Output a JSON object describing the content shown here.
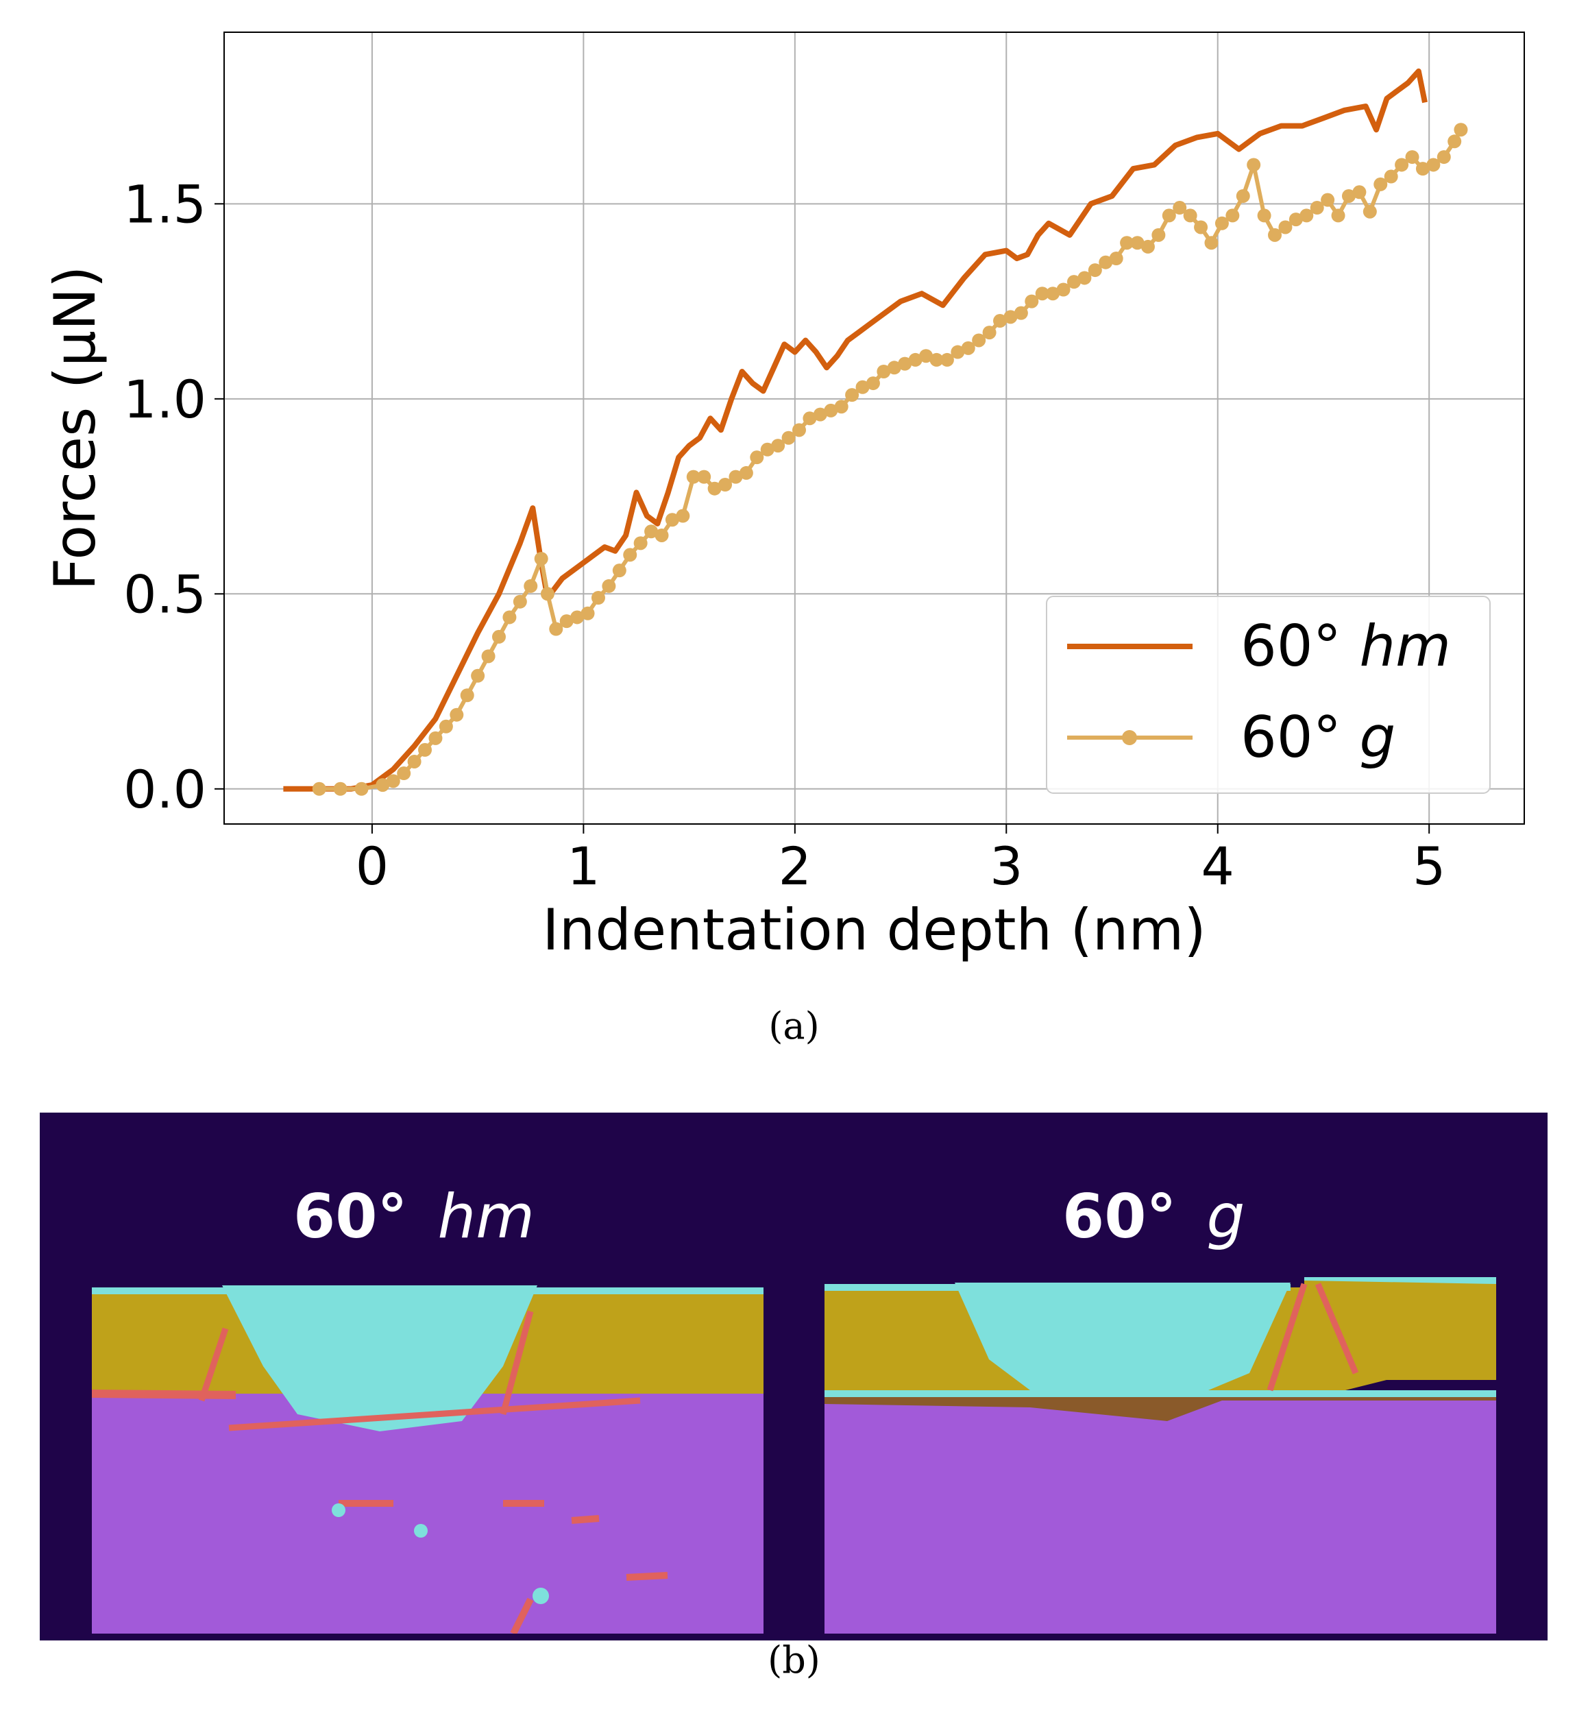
{
  "chart_data": {
    "type": "line",
    "xlabel": "Indentation depth (nm)",
    "ylabel": "Forces (μN)",
    "xlim": [
      -0.7,
      5.45
    ],
    "ylim": [
      -0.09,
      1.94
    ],
    "xticks": [
      0,
      1,
      2,
      3,
      4,
      5
    ],
    "yticks": [
      0.0,
      0.5,
      1.0,
      1.5
    ],
    "xtick_labels": [
      "0",
      "1",
      "2",
      "3",
      "4",
      "5"
    ],
    "ytick_labels": [
      "0.0",
      "0.5",
      "1.0",
      "1.5"
    ],
    "grid": true,
    "legend_position": "bottom-right",
    "series": [
      {
        "name": "60° hm",
        "legend_prefix": "60°",
        "legend_italic": "hm",
        "color": "#d35f0e",
        "marker": false,
        "x": [
          -0.42,
          -0.1,
          0.0,
          0.1,
          0.2,
          0.3,
          0.4,
          0.5,
          0.6,
          0.7,
          0.76,
          0.8,
          0.83,
          0.9,
          1.0,
          1.05,
          1.1,
          1.15,
          1.2,
          1.25,
          1.3,
          1.35,
          1.4,
          1.45,
          1.5,
          1.55,
          1.6,
          1.65,
          1.7,
          1.75,
          1.8,
          1.85,
          1.9,
          1.95,
          2.0,
          2.05,
          2.1,
          2.15,
          2.2,
          2.25,
          2.3,
          2.4,
          2.5,
          2.6,
          2.7,
          2.8,
          2.9,
          3.0,
          3.05,
          3.1,
          3.15,
          3.2,
          3.3,
          3.4,
          3.5,
          3.6,
          3.7,
          3.8,
          3.9,
          4.0,
          4.1,
          4.2,
          4.3,
          4.4,
          4.5,
          4.6,
          4.7,
          4.75,
          4.8,
          4.85,
          4.9,
          4.95,
          4.98
        ],
        "y": [
          0.0,
          0.0,
          0.01,
          0.05,
          0.11,
          0.18,
          0.29,
          0.4,
          0.5,
          0.63,
          0.72,
          0.58,
          0.49,
          0.54,
          0.58,
          0.6,
          0.62,
          0.61,
          0.65,
          0.76,
          0.7,
          0.68,
          0.76,
          0.85,
          0.88,
          0.9,
          0.95,
          0.92,
          1.0,
          1.07,
          1.04,
          1.02,
          1.08,
          1.14,
          1.12,
          1.15,
          1.12,
          1.08,
          1.11,
          1.15,
          1.17,
          1.21,
          1.25,
          1.27,
          1.24,
          1.31,
          1.37,
          1.38,
          1.36,
          1.37,
          1.42,
          1.45,
          1.42,
          1.5,
          1.52,
          1.59,
          1.6,
          1.65,
          1.67,
          1.68,
          1.64,
          1.68,
          1.7,
          1.7,
          1.72,
          1.74,
          1.75,
          1.69,
          1.77,
          1.79,
          1.81,
          1.84,
          1.76
        ]
      },
      {
        "name": "60° g",
        "legend_prefix": "60°",
        "legend_italic": "g",
        "color": "#dfad5c",
        "marker": true,
        "x": [
          -0.25,
          -0.15,
          -0.05,
          0.05,
          0.1,
          0.15,
          0.2,
          0.25,
          0.3,
          0.35,
          0.4,
          0.45,
          0.5,
          0.55,
          0.6,
          0.65,
          0.7,
          0.75,
          0.8,
          0.83,
          0.87,
          0.92,
          0.97,
          1.02,
          1.07,
          1.12,
          1.17,
          1.22,
          1.27,
          1.32,
          1.37,
          1.42,
          1.47,
          1.52,
          1.57,
          1.62,
          1.67,
          1.72,
          1.77,
          1.82,
          1.87,
          1.92,
          1.97,
          2.02,
          2.07,
          2.12,
          2.17,
          2.22,
          2.27,
          2.32,
          2.37,
          2.42,
          2.47,
          2.52,
          2.57,
          2.62,
          2.67,
          2.72,
          2.77,
          2.82,
          2.87,
          2.92,
          2.97,
          3.02,
          3.07,
          3.12,
          3.17,
          3.22,
          3.27,
          3.32,
          3.37,
          3.42,
          3.47,
          3.52,
          3.57,
          3.62,
          3.67,
          3.72,
          3.77,
          3.82,
          3.87,
          3.92,
          3.97,
          4.02,
          4.07,
          4.12,
          4.17,
          4.22,
          4.27,
          4.32,
          4.37,
          4.42,
          4.47,
          4.52,
          4.57,
          4.62,
          4.67,
          4.72,
          4.77,
          4.82,
          4.87,
          4.92,
          4.97,
          5.02,
          5.07,
          5.12,
          5.15
        ],
        "y": [
          0.0,
          0.0,
          0.0,
          0.01,
          0.02,
          0.04,
          0.07,
          0.1,
          0.13,
          0.16,
          0.19,
          0.24,
          0.29,
          0.34,
          0.39,
          0.44,
          0.48,
          0.52,
          0.59,
          0.5,
          0.41,
          0.43,
          0.44,
          0.45,
          0.49,
          0.52,
          0.56,
          0.6,
          0.63,
          0.66,
          0.65,
          0.69,
          0.7,
          0.8,
          0.8,
          0.77,
          0.78,
          0.8,
          0.81,
          0.85,
          0.87,
          0.88,
          0.9,
          0.92,
          0.95,
          0.96,
          0.97,
          0.98,
          1.01,
          1.03,
          1.04,
          1.07,
          1.08,
          1.09,
          1.1,
          1.11,
          1.1,
          1.1,
          1.12,
          1.13,
          1.15,
          1.17,
          1.2,
          1.21,
          1.22,
          1.25,
          1.27,
          1.27,
          1.28,
          1.3,
          1.31,
          1.33,
          1.35,
          1.36,
          1.4,
          1.4,
          1.39,
          1.42,
          1.47,
          1.49,
          1.47,
          1.44,
          1.4,
          1.45,
          1.47,
          1.52,
          1.6,
          1.47,
          1.42,
          1.44,
          1.46,
          1.47,
          1.49,
          1.51,
          1.47,
          1.52,
          1.53,
          1.48,
          1.55,
          1.57,
          1.6,
          1.62,
          1.59,
          1.6,
          1.62,
          1.66,
          1.69
        ]
      }
    ]
  },
  "captions": {
    "a": "(a)",
    "b": "(b)"
  },
  "simulation_panel": {
    "background": "#1f0449",
    "left": {
      "prefix": "60°",
      "label": "hm"
    },
    "right": {
      "prefix": "60°",
      "label": "g"
    },
    "colors": {
      "substrate": "#a25ad9",
      "film": "#bfa21a",
      "indenter": "#7ee0dc",
      "defect": "#e0625d",
      "interface": "#8a5a2a"
    }
  }
}
